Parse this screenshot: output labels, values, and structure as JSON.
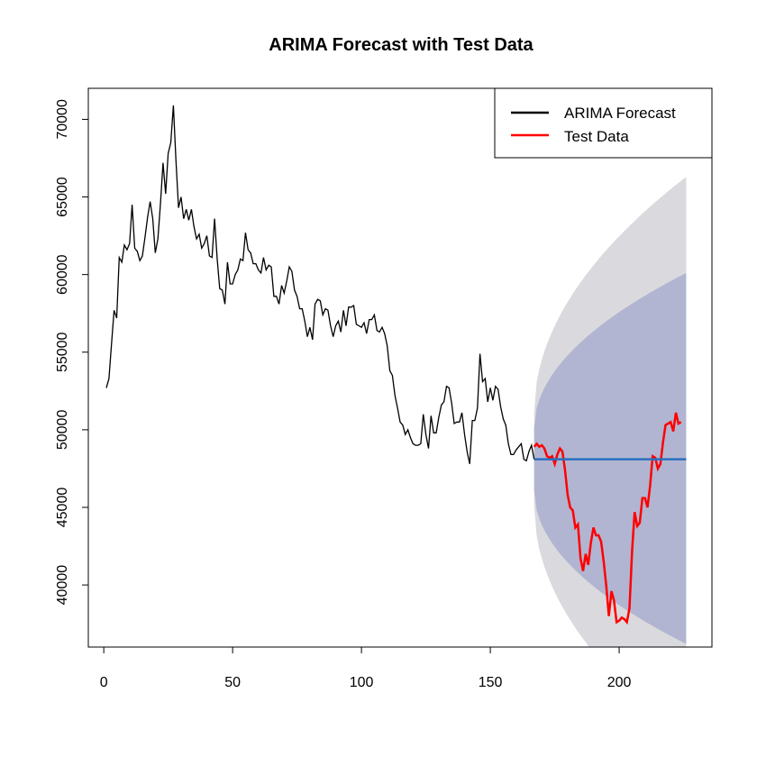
{
  "chart_data": {
    "type": "line",
    "title": "ARIMA Forecast with Test Data",
    "xlabel": "",
    "ylabel": "",
    "xlim": [
      -6,
      236
    ],
    "ylim": [
      36000,
      72000
    ],
    "x_ticks": [
      0,
      50,
      100,
      150,
      200
    ],
    "y_ticks": [
      40000,
      45000,
      50000,
      55000,
      60000,
      65000,
      70000
    ],
    "grid": false,
    "legend": {
      "position": "top-right",
      "entries": [
        {
          "label": "ARIMA Forecast",
          "color": "#000000"
        },
        {
          "label": "Test Data",
          "color": "#ff0000"
        }
      ]
    },
    "colors": {
      "history": "#000000",
      "test": "#ff0000",
      "forecast": "#2a6fbf",
      "band_80": "#b1b5d1",
      "band_95": "#dadade"
    },
    "history": {
      "x_start": 1,
      "values": [
        52700,
        53300,
        55500,
        57700,
        57200,
        61100,
        60800,
        61900,
        61600,
        62000,
        64500,
        61700,
        61500,
        60900,
        61200,
        62400,
        63700,
        64700,
        63600,
        61400,
        62300,
        64600,
        67200,
        65200,
        67800,
        68500,
        70900,
        67400,
        64300,
        65000,
        63600,
        64200,
        63500,
        64200,
        63100,
        62300,
        62600,
        61700,
        62000,
        62500,
        61200,
        61100,
        63600,
        61000,
        59100,
        59000,
        58100,
        60800,
        59400,
        59400,
        60000,
        60300,
        61000,
        60900,
        62700,
        61600,
        61400,
        60700,
        60700,
        60300,
        60100,
        61100,
        60300,
        60600,
        60500,
        58600,
        58600,
        58100,
        59300,
        58800,
        59600,
        60500,
        60200,
        59000,
        58600,
        57800,
        57800,
        57000,
        56000,
        56600,
        55800,
        58100,
        58400,
        58300,
        57400,
        57800,
        57700,
        56700,
        56000,
        56700,
        57000,
        56300,
        57700,
        56700,
        57900,
        57900,
        58000,
        56800,
        56700,
        56600,
        56900,
        56200,
        57100,
        57100,
        57400,
        56400,
        56300,
        56600,
        56200,
        55400,
        53800,
        53500,
        52200,
        51400,
        50500,
        50300,
        49700,
        50000,
        49500,
        49100,
        49000,
        49000,
        49100,
        51000,
        49700,
        48800,
        50900,
        49800,
        49800,
        50800,
        51600,
        51800,
        52800,
        52700,
        51700,
        50400,
        50500,
        50500,
        51100,
        49700,
        48600,
        47800,
        50600,
        50600,
        51400,
        54900,
        53100,
        53300,
        51800,
        52700,
        51900,
        52800,
        52600,
        51500,
        50700,
        50300,
        49100,
        48400,
        48400,
        48700,
        48900,
        49100,
        48100,
        48000,
        48600,
        49000,
        48100
      ]
    },
    "test": {
      "x_start": 167,
      "values": [
        48900,
        49100,
        48900,
        49000,
        48800,
        48300,
        48200,
        48300,
        47800,
        48400,
        48800,
        48600,
        47400,
        45800,
        45000,
        44800,
        43700,
        43900,
        41700,
        40900,
        42000,
        41300,
        42700,
        43700,
        43200,
        43200,
        42800,
        41500,
        39900,
        38000,
        39600,
        39000,
        37600,
        37700,
        37900,
        37800,
        37600,
        38500,
        42200,
        44700,
        43800,
        44000,
        45600,
        45600,
        45000,
        46400,
        48300,
        48200,
        47500,
        47800,
        49200,
        50300,
        50400,
        50500,
        49900,
        51100,
        50400,
        50500
      ]
    },
    "forecast": {
      "x_start": 167,
      "x_end": 226,
      "value": 48100,
      "band_80": {
        "lower_start": 46100,
        "upper_start": 50100,
        "lower_end": 36200,
        "upper_end": 60100
      },
      "band_95": {
        "lower_start": 45100,
        "upper_start": 51100,
        "lower_end": 30000,
        "upper_end": 66300
      }
    }
  }
}
